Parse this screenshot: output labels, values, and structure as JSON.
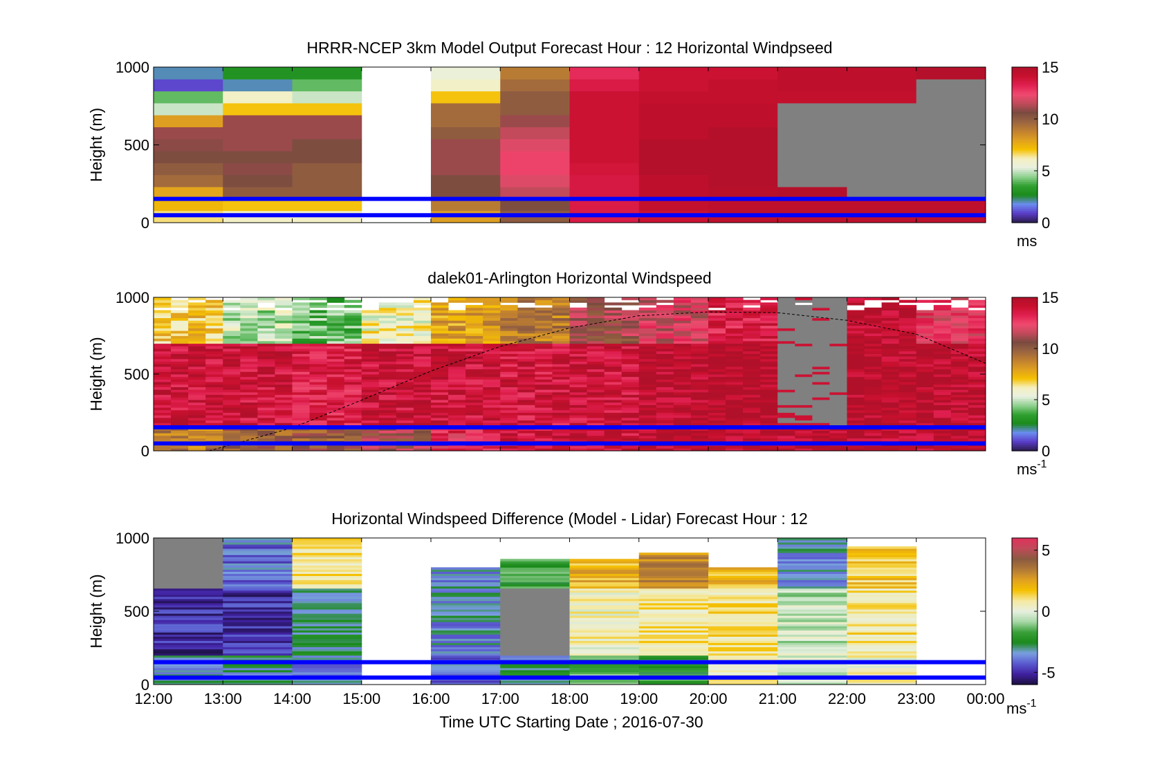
{
  "figure": {
    "x_title": "Time UTC  Starting Date ; 2016-07-30",
    "x_tick_labels": [
      "12:00",
      "13:00",
      "14:00",
      "15:00",
      "16:00",
      "17:00",
      "18:00",
      "19:00",
      "20:00",
      "21:00",
      "22:00",
      "23:00",
      "00:00"
    ]
  },
  "colors": {
    "overlay_line": "#0000ff",
    "no_data": "#808080",
    "speed_colormap": [
      "#2a1b4a",
      "#5a3cc8",
      "#6a8cf0",
      "#1a8a1a",
      "#2fa02f",
      "#8fd08f",
      "#e8f0e0",
      "#f5f0c0",
      "#f5c000",
      "#e0a020",
      "#c08030",
      "#9a6540",
      "#7a4a40",
      "#c04a5a",
      "#f04a70",
      "#e02050",
      "#c8102e",
      "#b0102a"
    ],
    "diff_colormap": [
      "#1c1040",
      "#4020a0",
      "#5a5ad0",
      "#7aa0e0",
      "#1a8a1a",
      "#3aa03a",
      "#a8d8a8",
      "#e8f0e0",
      "#f5e9a0",
      "#f5c000",
      "#e0a020",
      "#b07838",
      "#8a5a40",
      "#c04a5a",
      "#e0305a"
    ]
  },
  "chart_data": [
    {
      "type": "heatmap",
      "title": "HRRR-NCEP 3km Model Output   Forecast Hour : 12 Horizontal Windpseed",
      "xlabel": "",
      "ylabel": "Height (m)",
      "ylim": [
        0,
        1000
      ],
      "y_ticks": [
        0,
        500,
        1000
      ],
      "x_range_hours": [
        12,
        24
      ],
      "colorbar": {
        "min": 0,
        "max": 15,
        "ticks": [
          0,
          5,
          10,
          15
        ],
        "unit": "ms",
        "unit_sup": ""
      },
      "hlines_m": [
        48,
        153
      ],
      "columns": [
        {
          "t": 12,
          "v": [
            6.5,
            7.3,
            7.8,
            9.5,
            10,
            10.5,
            10.8,
            11,
            8,
            5,
            4,
            1,
            2
          ]
        },
        {
          "t": 13,
          "v": [
            6,
            7,
            10,
            10.5,
            10.8,
            10.5,
            11,
            11,
            11,
            7,
            6,
            2,
            3
          ]
        },
        {
          "t": 14,
          "v": [
            6,
            7,
            10,
            10,
            10,
            10.5,
            10.5,
            11,
            11,
            7,
            5,
            4,
            3
          ]
        },
        {
          "t": 15,
          "v": []
        },
        {
          "t": 16,
          "v": [
            8,
            9,
            10.5,
            10.5,
            11,
            11,
            11,
            10,
            9.5,
            9.5,
            7,
            6,
            5.5
          ]
        },
        {
          "t": 17,
          "v": [
            10,
            10.5,
            11.5,
            12,
            12.5,
            12.5,
            12,
            11.5,
            11,
            10,
            10,
            9.5,
            9
          ]
        },
        {
          "t": 18,
          "v": [
            13.5,
            13.5,
            13.6,
            13.6,
            13.8,
            14,
            14,
            14,
            14,
            14,
            14,
            13.5,
            13
          ]
        },
        {
          "t": 19,
          "v": [
            14,
            14.3,
            14.5,
            14.5,
            14.8,
            14.8,
            14.8,
            14.5,
            14.5,
            14.5,
            14.3,
            14,
            14
          ]
        },
        {
          "t": 20,
          "v": [
            14.5,
            14.5,
            14.7,
            14.8,
            14.8,
            14.8,
            14.8,
            14.8,
            14.5,
            14.5,
            14.3,
            14.3,
            14
          ]
        },
        {
          "t": 21,
          "v": [
            14.5,
            14.5,
            14.8,
            -1,
            -1,
            -1,
            -1,
            -1,
            -1,
            -1,
            14.3,
            14.5,
            14.5
          ]
        },
        {
          "t": 22,
          "v": [
            14.5,
            14.5,
            -1,
            -1,
            -1,
            -1,
            -1,
            -1,
            -1,
            -1,
            14.3,
            14.5,
            14.5
          ]
        },
        {
          "t": 23,
          "v": [
            14.5,
            14.5,
            -1,
            -1,
            -1,
            -1,
            -1,
            -1,
            -1,
            -1,
            -1,
            -1,
            14.8
          ]
        }
      ]
    },
    {
      "type": "heatmap",
      "title": "dalek01-Arlington  Horizontal Windspeed",
      "xlabel": "",
      "ylabel": "Height (m)",
      "ylim": [
        0,
        1000
      ],
      "y_ticks": [
        0,
        500,
        1000
      ],
      "x_range_hours": [
        12,
        24
      ],
      "colorbar": {
        "min": 0,
        "max": 15,
        "ticks": [
          0,
          5,
          10,
          15
        ],
        "unit": "ms",
        "unit_sup": "-1"
      },
      "hlines_m": [
        48,
        153
      ],
      "boundary_layer_curve": [
        [
          12.8,
          0
        ],
        [
          14,
          150
        ],
        [
          15,
          330
        ],
        [
          16,
          520
        ],
        [
          17,
          680
        ],
        [
          18,
          800
        ],
        [
          19,
          880
        ],
        [
          20,
          905
        ],
        [
          21,
          900
        ],
        [
          22,
          850
        ],
        [
          23,
          760
        ],
        [
          24,
          570
        ]
      ],
      "columns_per_hour": 4,
      "profiles": [
        {
          "h": 12,
          "bottom": 9,
          "mid": 14,
          "top": 7
        },
        {
          "h": 13,
          "bottom": 10,
          "mid": 14,
          "top": 5
        },
        {
          "h": 14,
          "bottom": 10,
          "mid": 13.5,
          "top": 4
        },
        {
          "h": 15,
          "bottom": 11,
          "mid": 14,
          "top": 6
        },
        {
          "h": 16,
          "bottom": 13,
          "mid": 14,
          "top": 8
        },
        {
          "h": 17,
          "bottom": 14,
          "mid": 13.8,
          "top": 9
        },
        {
          "h": 18,
          "bottom": 14,
          "mid": 14,
          "top": 11
        },
        {
          "h": 19,
          "bottom": 14.5,
          "mid": 14.5,
          "top": 12
        },
        {
          "h": 20,
          "bottom": 14.5,
          "mid": 14.8,
          "top": 13.5
        },
        {
          "h": 21,
          "bottom": 14.5,
          "mid": -1,
          "top": -1
        },
        {
          "h": 22,
          "bottom": 14.5,
          "mid": 14.6,
          "top": 14.5
        },
        {
          "h": 23,
          "bottom": 14.5,
          "mid": 14.5,
          "top": 12.5
        }
      ]
    },
    {
      "type": "heatmap",
      "title": "Horizontal Windspeed Difference (Model - Lidar) Forecast Hour : 12",
      "xlabel": "Time UTC  Starting Date ; 2016-07-30",
      "ylabel": "Height (m)",
      "ylim": [
        0,
        1000
      ],
      "y_ticks": [
        0,
        500,
        1000
      ],
      "x_range_hours": [
        12,
        24
      ],
      "colorbar": {
        "min": -6,
        "max": 6,
        "ticks": [
          -5,
          0,
          5
        ],
        "unit": "ms",
        "unit_sup": "-1"
      },
      "hlines_m": [
        48,
        153
      ],
      "columns": [
        {
          "t": 12,
          "top": 1000,
          "bottom_v": -3.5,
          "mid_v": -5,
          "top_v": -99
        },
        {
          "t": 13,
          "top": 1000,
          "bottom_v": -3,
          "mid_v": -5,
          "top_v": -4
        },
        {
          "t": 14,
          "top": 1000,
          "bottom_v": -3.5,
          "mid_v": -3,
          "top_v": 1
        },
        {
          "t": 15,
          "top": 0,
          "bottom_v": 0,
          "mid_v": 0,
          "top_v": 0
        },
        {
          "t": 16,
          "top": 790,
          "bottom_v": -4,
          "mid_v": -3.5,
          "top_v": -3.5
        },
        {
          "t": 17,
          "top": 850,
          "bottom_v": -3,
          "mid_v": -1,
          "top_v": -2
        },
        {
          "t": 18,
          "top": 850,
          "bottom_v": -1.5,
          "mid_v": 0.5,
          "top_v": 2
        },
        {
          "t": 19,
          "top": 900,
          "bottom_v": -2,
          "mid_v": 0.8,
          "top_v": 3
        },
        {
          "t": 20,
          "top": 800,
          "bottom_v": 0.5,
          "mid_v": 1,
          "top_v": 2
        },
        {
          "t": 21,
          "top": 1000,
          "bottom_v": -0.5,
          "mid_v": -0.5,
          "top_v": -3.5
        },
        {
          "t": 22,
          "top": 930,
          "bottom_v": 0.5,
          "mid_v": 1,
          "top_v": 1.5
        },
        {
          "t": 23,
          "top": 0,
          "bottom_v": 0,
          "mid_v": 0,
          "top_v": 0
        }
      ]
    }
  ]
}
